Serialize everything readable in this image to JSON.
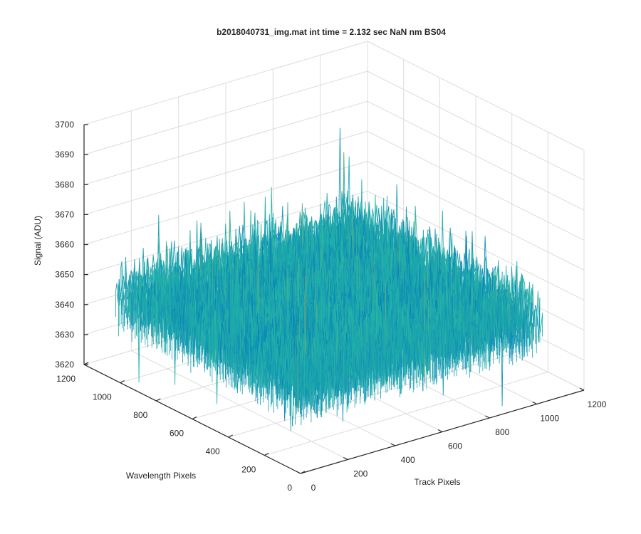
{
  "window": {
    "title": "b2018040731_img.mat int time = 2.132 sec  NaN nm BS04"
  },
  "chart_data": {
    "type": "surface",
    "title": "b2018040731_img.mat int time = 2.132 sec  NaN nm BS04",
    "xlabel": "Track Pixels",
    "ylabel": "Wavelength Pixels",
    "zlabel": "Signal (ADU)",
    "xlim": [
      0,
      1200
    ],
    "ylim": [
      0,
      1200
    ],
    "zlim": [
      3620,
      3700
    ],
    "x_ticks": [
      "0",
      "200",
      "400",
      "600",
      "800",
      "1000",
      "1200"
    ],
    "y_ticks": [
      "0",
      "200",
      "400",
      "600",
      "800",
      "1000",
      "1200"
    ],
    "z_ticks": [
      "3620",
      "3630",
      "3640",
      "3650",
      "3660",
      "3670",
      "3680",
      "3690",
      "3700"
    ],
    "data_extent": {
      "x": [
        0,
        1024
      ],
      "y": [
        0,
        1024
      ]
    },
    "signal_mean": 3650,
    "signal_range": [
      3630,
      3690
    ],
    "grid": true,
    "colormap": "parula",
    "colors": {
      "low": "#0072bd",
      "mid": "#24b4a8",
      "high": "#edb120",
      "axis": "#262626",
      "grid": "#dcdcdc"
    }
  }
}
